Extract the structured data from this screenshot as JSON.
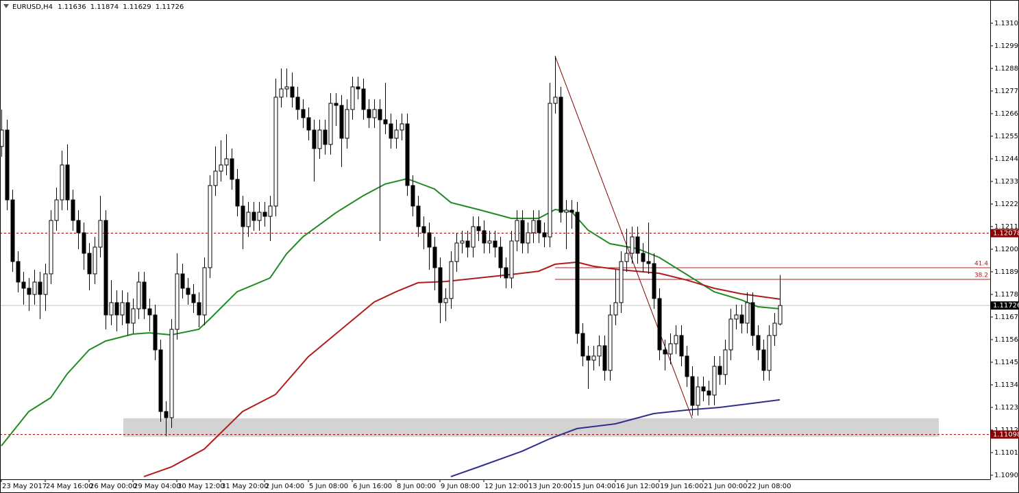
{
  "chart_data": {
    "type": "candlestick",
    "symbol": "EURUSD,H4",
    "xlim": [
      -0.25,
      180.375
    ],
    "ylim": [
      1.1088,
      1.13213
    ],
    "yticks": [
      {
        "value": 1.109,
        "label": "1.10900"
      },
      {
        "value": 1.1101,
        "label": "1.11010"
      },
      {
        "value": 1.1112,
        "label": "1.11120"
      },
      {
        "value": 1.1123,
        "label": "1.11230"
      },
      {
        "value": 1.1134,
        "label": "1.11340"
      },
      {
        "value": 1.1145,
        "label": "1.11450"
      },
      {
        "value": 1.1156,
        "label": "1.11560"
      },
      {
        "value": 1.1167,
        "label": "1.11670"
      },
      {
        "value": 1.1178,
        "label": "1.11780"
      },
      {
        "value": 1.1189,
        "label": "1.11890"
      },
      {
        "value": 1.12,
        "label": "1.12000"
      },
      {
        "value": 1.1211,
        "label": "1.12110"
      },
      {
        "value": 1.1222,
        "label": "1.12220"
      },
      {
        "value": 1.1233,
        "label": "1.12330"
      },
      {
        "value": 1.1244,
        "label": "1.12440"
      },
      {
        "value": 1.1255,
        "label": "1.12550"
      },
      {
        "value": 1.1266,
        "label": "1.12660"
      },
      {
        "value": 1.1277,
        "label": "1.12770"
      },
      {
        "value": 1.1288,
        "label": "1.12880"
      },
      {
        "value": 1.1299,
        "label": "1.12990"
      },
      {
        "value": 1.131,
        "label": "1.13100"
      }
    ],
    "xticks": [
      {
        "value": 0,
        "label": "23 May 2017"
      },
      {
        "value": 8,
        "label": "24 May 16:00"
      },
      {
        "value": 16,
        "label": "26 May 00:00"
      },
      {
        "value": 24,
        "label": "29 May 04:00"
      },
      {
        "value": 32,
        "label": "30 May 12:00"
      },
      {
        "value": 40,
        "label": "31 May 20:00"
      },
      {
        "value": 48,
        "label": "2 Jun 04:00"
      },
      {
        "value": 56,
        "label": "5 Jun 08:00"
      },
      {
        "value": 64,
        "label": "6 Jun 16:00"
      },
      {
        "value": 72,
        "label": "8 Jun 00:00"
      },
      {
        "value": 80,
        "label": "9 Jun 08:00"
      },
      {
        "value": 88,
        "label": "12 Jun 12:00"
      },
      {
        "value": 96,
        "label": "13 Jun 20:00"
      },
      {
        "value": 104,
        "label": "15 Jun 04:00"
      },
      {
        "value": 112,
        "label": "16 Jun 12:00"
      },
      {
        "value": 120,
        "label": "19 Jun 16:00"
      },
      {
        "value": 128,
        "label": "21 Jun 00:00"
      },
      {
        "value": 136,
        "label": "22 Jun 08:00"
      }
    ],
    "candles": [
      [
        1.125,
        1.1268,
        1.1245,
        1.1258
      ],
      [
        1.1258,
        1.1263,
        1.1219,
        1.1224
      ],
      [
        1.1224,
        1.1229,
        1.1189,
        1.1194
      ],
      [
        1.1194,
        1.1199,
        1.1179,
        1.1184
      ],
      [
        1.1184,
        1.1189,
        1.1173,
        1.1181
      ],
      [
        1.1181,
        1.1186,
        1.117,
        1.1178
      ],
      [
        1.1178,
        1.119,
        1.1173,
        1.1184
      ],
      [
        1.1184,
        1.1189,
        1.1166,
        1.1178
      ],
      [
        1.1178,
        1.1193,
        1.117,
        1.1188
      ],
      [
        1.1188,
        1.1219,
        1.1183,
        1.1214
      ],
      [
        1.1214,
        1.123,
        1.1209,
        1.1224
      ],
      [
        1.1224,
        1.1248,
        1.1219,
        1.1241
      ],
      [
        1.1241,
        1.1251,
        1.1219,
        1.1224
      ],
      [
        1.1224,
        1.1229,
        1.1209,
        1.1214
      ],
      [
        1.1214,
        1.1219,
        1.12,
        1.1208
      ],
      [
        1.1208,
        1.1213,
        1.119,
        1.1198
      ],
      [
        1.1198,
        1.1203,
        1.118,
        1.1188
      ],
      [
        1.1188,
        1.1206,
        1.1183,
        1.1201
      ],
      [
        1.1201,
        1.1226,
        1.1196,
        1.1214
      ],
      [
        1.1214,
        1.1219,
        1.1161,
        1.1168
      ],
      [
        1.1168,
        1.1185,
        1.1163,
        1.1174
      ],
      [
        1.1174,
        1.118,
        1.116,
        1.1168
      ],
      [
        1.1168,
        1.118,
        1.1163,
        1.1174
      ],
      [
        1.1174,
        1.1179,
        1.1158,
        1.1164
      ],
      [
        1.1164,
        1.1176,
        1.1159,
        1.1171
      ],
      [
        1.1171,
        1.1189,
        1.1166,
        1.1184
      ],
      [
        1.1184,
        1.1189,
        1.1166,
        1.1171
      ],
      [
        1.1171,
        1.1176,
        1.116,
        1.1168
      ],
      [
        1.1168,
        1.1173,
        1.1146,
        1.1151
      ],
      [
        1.1151,
        1.1156,
        1.1116,
        1.1121
      ],
      [
        1.1121,
        1.1126,
        1.1109,
        1.1118
      ],
      [
        1.1118,
        1.1166,
        1.1113,
        1.1161
      ],
      [
        1.1161,
        1.1198,
        1.1156,
        1.1188
      ],
      [
        1.1188,
        1.1193,
        1.1176,
        1.1181
      ],
      [
        1.1181,
        1.1186,
        1.1173,
        1.1178
      ],
      [
        1.1178,
        1.1183,
        1.1169,
        1.1174
      ],
      [
        1.1174,
        1.1179,
        1.1162,
        1.1168
      ],
      [
        1.1168,
        1.1196,
        1.1163,
        1.1191
      ],
      [
        1.1191,
        1.1236,
        1.1186,
        1.1231
      ],
      [
        1.1231,
        1.125,
        1.1226,
        1.1238
      ],
      [
        1.1238,
        1.1253,
        1.1233,
        1.1241
      ],
      [
        1.1241,
        1.1256,
        1.1236,
        1.1244
      ],
      [
        1.1244,
        1.1249,
        1.1229,
        1.1234
      ],
      [
        1.1234,
        1.1239,
        1.1216,
        1.1221
      ],
      [
        1.1221,
        1.1226,
        1.12,
        1.1211
      ],
      [
        1.1211,
        1.1223,
        1.1206,
        1.1218
      ],
      [
        1.1218,
        1.1223,
        1.1209,
        1.1214
      ],
      [
        1.1214,
        1.1223,
        1.1209,
        1.1218
      ],
      [
        1.1218,
        1.1223,
        1.1211,
        1.1216
      ],
      [
        1.1216,
        1.1226,
        1.1204,
        1.1221
      ],
      [
        1.1221,
        1.1283,
        1.1216,
        1.1274
      ],
      [
        1.1274,
        1.1288,
        1.1269,
        1.1278
      ],
      [
        1.1278,
        1.1288,
        1.1274,
        1.1279
      ],
      [
        1.1279,
        1.1286,
        1.1269,
        1.1274
      ],
      [
        1.1274,
        1.1279,
        1.1263,
        1.1268
      ],
      [
        1.1268,
        1.1273,
        1.1259,
        1.1264
      ],
      [
        1.1264,
        1.1269,
        1.1253,
        1.1258
      ],
      [
        1.1258,
        1.1263,
        1.1233,
        1.1249
      ],
      [
        1.1249,
        1.1263,
        1.1244,
        1.1258
      ],
      [
        1.1258,
        1.1263,
        1.1246,
        1.1251
      ],
      [
        1.1251,
        1.1276,
        1.1246,
        1.1271
      ],
      [
        1.1271,
        1.1276,
        1.126,
        1.127
      ],
      [
        1.127,
        1.1275,
        1.124,
        1.1254
      ],
      [
        1.1254,
        1.1273,
        1.1249,
        1.1268
      ],
      [
        1.1268,
        1.1284,
        1.1263,
        1.1279
      ],
      [
        1.1279,
        1.1284,
        1.1273,
        1.1278
      ],
      [
        1.1278,
        1.1283,
        1.1263,
        1.1268
      ],
      [
        1.1268,
        1.1273,
        1.1259,
        1.1264
      ],
      [
        1.1264,
        1.1273,
        1.1259,
        1.1268
      ],
      [
        1.1268,
        1.1273,
        1.1204,
        1.1263
      ],
      [
        1.1263,
        1.1281,
        1.1256,
        1.1261
      ],
      [
        1.1261,
        1.1266,
        1.1249,
        1.1254
      ],
      [
        1.1254,
        1.1263,
        1.1249,
        1.1258
      ],
      [
        1.1258,
        1.1266,
        1.1253,
        1.1261
      ],
      [
        1.1261,
        1.1266,
        1.1226,
        1.1231
      ],
      [
        1.1231,
        1.1236,
        1.1216,
        1.1221
      ],
      [
        1.1221,
        1.1226,
        1.1206,
        1.1211
      ],
      [
        1.1211,
        1.1216,
        1.12,
        1.1208
      ],
      [
        1.1208,
        1.1213,
        1.119,
        1.1201
      ],
      [
        1.1201,
        1.1206,
        1.118,
        1.1191
      ],
      [
        1.1191,
        1.1196,
        1.1164,
        1.1174
      ],
      [
        1.1174,
        1.1181,
        1.1165,
        1.1176
      ],
      [
        1.1176,
        1.1199,
        1.1171,
        1.1194
      ],
      [
        1.1194,
        1.1208,
        1.1189,
        1.1203
      ],
      [
        1.1203,
        1.1209,
        1.1198,
        1.1204
      ],
      [
        1.1204,
        1.1209,
        1.1196,
        1.1201
      ],
      [
        1.1201,
        1.1216,
        1.1196,
        1.1211
      ],
      [
        1.1211,
        1.1216,
        1.1204,
        1.1209
      ],
      [
        1.1209,
        1.1214,
        1.1198,
        1.1203
      ],
      [
        1.1203,
        1.1209,
        1.1198,
        1.1204
      ],
      [
        1.1204,
        1.1209,
        1.1196,
        1.1201
      ],
      [
        1.1201,
        1.1206,
        1.1186,
        1.1191
      ],
      [
        1.1191,
        1.1196,
        1.1181,
        1.1186
      ],
      [
        1.1186,
        1.1209,
        1.1181,
        1.1204
      ],
      [
        1.1204,
        1.1219,
        1.1199,
        1.1214
      ],
      [
        1.1214,
        1.1219,
        1.1198,
        1.1203
      ],
      [
        1.1203,
        1.1213,
        1.1198,
        1.1208
      ],
      [
        1.1208,
        1.1219,
        1.1203,
        1.1214
      ],
      [
        1.1214,
        1.1219,
        1.1203,
        1.1208
      ],
      [
        1.1208,
        1.1213,
        1.1201,
        1.1206
      ],
      [
        1.1206,
        1.1281,
        1.1201,
        1.1271
      ],
      [
        1.1271,
        1.1294,
        1.1266,
        1.1274
      ],
      [
        1.1274,
        1.1279,
        1.1213,
        1.1218
      ],
      [
        1.1218,
        1.1224,
        1.12,
        1.1219
      ],
      [
        1.1219,
        1.1224,
        1.121,
        1.1218
      ],
      [
        1.1218,
        1.1223,
        1.1154,
        1.1159
      ],
      [
        1.1159,
        1.1164,
        1.1143,
        1.1148
      ],
      [
        1.1148,
        1.1153,
        1.1132,
        1.1146
      ],
      [
        1.1146,
        1.1153,
        1.1141,
        1.1148
      ],
      [
        1.1148,
        1.1158,
        1.1143,
        1.1153
      ],
      [
        1.1153,
        1.1158,
        1.1136,
        1.1141
      ],
      [
        1.1141,
        1.1173,
        1.1136,
        1.1168
      ],
      [
        1.1168,
        1.119,
        1.1163,
        1.1174
      ],
      [
        1.1174,
        1.1199,
        1.1169,
        1.1194
      ],
      [
        1.1194,
        1.121,
        1.1189,
        1.1198
      ],
      [
        1.1198,
        1.1211,
        1.1193,
        1.1206
      ],
      [
        1.1206,
        1.1211,
        1.1193,
        1.1198
      ],
      [
        1.1198,
        1.1203,
        1.1189,
        1.1194
      ],
      [
        1.1194,
        1.1213,
        1.1188,
        1.1193
      ],
      [
        1.1193,
        1.1198,
        1.1171,
        1.1176
      ],
      [
        1.1176,
        1.1181,
        1.1146,
        1.1151
      ],
      [
        1.1151,
        1.1156,
        1.1141,
        1.1149
      ],
      [
        1.1149,
        1.1159,
        1.1144,
        1.1154
      ],
      [
        1.1154,
        1.1163,
        1.1149,
        1.1158
      ],
      [
        1.1158,
        1.1163,
        1.1143,
        1.1148
      ],
      [
        1.1148,
        1.1153,
        1.1133,
        1.1138
      ],
      [
        1.1138,
        1.1143,
        1.1119,
        1.1124
      ],
      [
        1.1124,
        1.1138,
        1.1119,
        1.1133
      ],
      [
        1.1133,
        1.1138,
        1.1126,
        1.1131
      ],
      [
        1.1131,
        1.1136,
        1.1124,
        1.1129
      ],
      [
        1.1129,
        1.1148,
        1.1124,
        1.1143
      ],
      [
        1.1143,
        1.1148,
        1.1134,
        1.1139
      ],
      [
        1.1139,
        1.1156,
        1.1134,
        1.1151
      ],
      [
        1.1151,
        1.1171,
        1.1146,
        1.1166
      ],
      [
        1.1166,
        1.1173,
        1.1161,
        1.1168
      ],
      [
        1.1168,
        1.1173,
        1.1159,
        1.1164
      ],
      [
        1.1164,
        1.1179,
        1.1159,
        1.1174
      ],
      [
        1.1174,
        1.1179,
        1.1153,
        1.1158
      ],
      [
        1.1158,
        1.1163,
        1.1146,
        1.1151
      ],
      [
        1.1151,
        1.1156,
        1.1136,
        1.1141
      ],
      [
        1.1141,
        1.1163,
        1.1136,
        1.1158
      ],
      [
        1.1158,
        1.1169,
        1.1153,
        1.1164
      ],
      [
        1.11636,
        1.11874,
        1.11629,
        1.11726
      ]
    ],
    "up_color": "#ffffff",
    "down_color": "#000000",
    "series": [
      {
        "color": "#1f8a1f",
        "x": [
          0,
          5,
          9,
          12,
          16,
          19,
          24,
          27,
          31,
          36,
          38,
          43,
          49,
          52,
          55,
          61,
          66,
          70,
          74,
          79,
          82,
          87,
          93,
          98,
          101,
          104,
          107,
          111,
          116,
          120,
          125,
          130,
          135,
          138,
          142
        ],
        "values": [
          1.11043,
          1.1121,
          1.11277,
          1.11393,
          1.1151,
          1.11553,
          1.11587,
          1.11593,
          1.11583,
          1.1161,
          1.1166,
          1.11793,
          1.1186,
          1.11977,
          1.1206,
          1.12177,
          1.1226,
          1.12317,
          1.12343,
          1.12293,
          1.12227,
          1.12193,
          1.1215,
          1.1215,
          1.12193,
          1.12183,
          1.12093,
          1.12027,
          1.12003,
          1.1196,
          1.11877,
          1.11793,
          1.11753,
          1.1172,
          1.1171
        ]
      },
      {
        "color": "#b01c1c",
        "x": [
          26,
          31,
          37,
          44,
          50,
          56,
          62,
          68,
          72,
          76,
          81,
          87,
          93,
          98,
          101,
          105,
          108,
          113,
          120,
          125,
          130,
          135,
          142
        ],
        "values": [
          1.10893,
          1.1094,
          1.11027,
          1.1121,
          1.11293,
          1.11477,
          1.1161,
          1.11743,
          1.11793,
          1.11837,
          1.11843,
          1.1186,
          1.11877,
          1.11893,
          1.11927,
          1.11937,
          1.11917,
          1.119,
          1.11883,
          1.1185,
          1.1181,
          1.11783,
          1.11757
        ]
      },
      {
        "color": "#2e2e8c",
        "x": [
          82,
          87,
          95,
          100,
          105,
          112,
          119,
          125,
          131,
          137,
          142
        ],
        "values": [
          1.10893,
          1.1094,
          1.11017,
          1.11077,
          1.11127,
          1.1115,
          1.112,
          1.11217,
          1.1123,
          1.1125,
          1.11267
        ]
      }
    ],
    "trendline": {
      "x": [
        101,
        126
      ],
      "y": [
        1.1294,
        1.11177
      ],
      "color": "#800000"
    },
    "zone": {
      "x": [
        22.25,
        171
      ],
      "y": [
        1.11087,
        1.11177
      ],
      "color": "#d3d3d3"
    },
    "hlines": [
      {
        "value": 1.12078,
        "color": "#8b0000"
      },
      {
        "value": 1.11098,
        "color": "#8b0000"
      }
    ],
    "bid_line_color": "#c0c0c0",
    "fib": {
      "x0": 101,
      "color": "#b01c1c",
      "levels": [
        {
          "level": 41.4,
          "price": 1.1191
        },
        {
          "level": 38.2,
          "price": 1.11853
        }
      ]
    }
  }
}
